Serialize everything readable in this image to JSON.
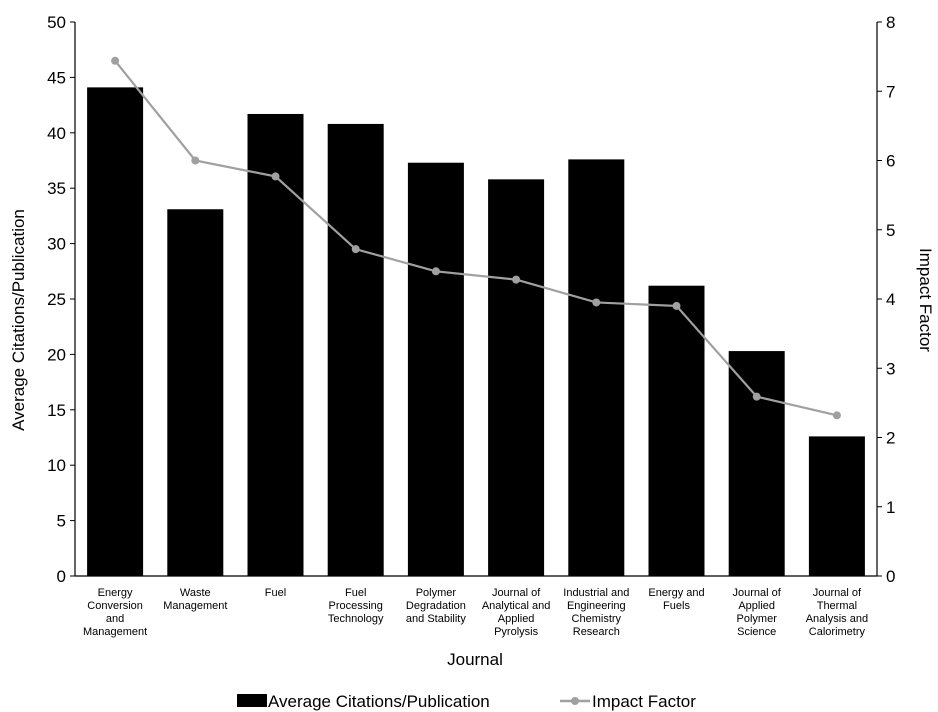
{
  "chart_data": {
    "type": "bar",
    "title": "",
    "xlabel": "Journal",
    "ylabel": "Average Citations/Publication",
    "y2label": "Impact Factor",
    "ylim": [
      0,
      50
    ],
    "y2lim": [
      0,
      8
    ],
    "yticks": [
      "0",
      "5",
      "10",
      "15",
      "20",
      "25",
      "30",
      "35",
      "40",
      "45",
      "50"
    ],
    "y2ticks": [
      "0",
      "1",
      "2",
      "3",
      "4",
      "5",
      "6",
      "7",
      "8"
    ],
    "categories": [
      [
        "Energy",
        "Conversion",
        "and",
        "Management"
      ],
      [
        "Waste",
        "Management"
      ],
      [
        "Fuel"
      ],
      [
        "Fuel",
        "Processing",
        "Technology"
      ],
      [
        "Polymer",
        "Degradation",
        "and Stability"
      ],
      [
        "Journal of",
        "Analytical and",
        "Applied",
        "Pyrolysis"
      ],
      [
        "Industrial and",
        "Engineering",
        "Chemistry",
        "Research"
      ],
      [
        "Energy and",
        "Fuels"
      ],
      [
        "Journal of",
        "Applied",
        "Polymer",
        "Science"
      ],
      [
        "Journal of",
        "Thermal",
        "Analysis and",
        "Calorimetry"
      ]
    ],
    "series": [
      {
        "name": "Average Citations/Publication",
        "type": "bar",
        "axis": "left",
        "color": "#000000",
        "values": [
          44.1,
          33.1,
          41.7,
          40.8,
          37.3,
          35.8,
          37.6,
          26.2,
          20.3,
          12.6
        ]
      },
      {
        "name": "Impact Factor",
        "type": "line",
        "axis": "right",
        "color": "#a0a0a0",
        "values": [
          7.44,
          6.0,
          5.77,
          4.72,
          4.4,
          4.28,
          3.95,
          3.9,
          2.59,
          2.32
        ]
      }
    ],
    "grid": false,
    "legend": "bottom"
  }
}
